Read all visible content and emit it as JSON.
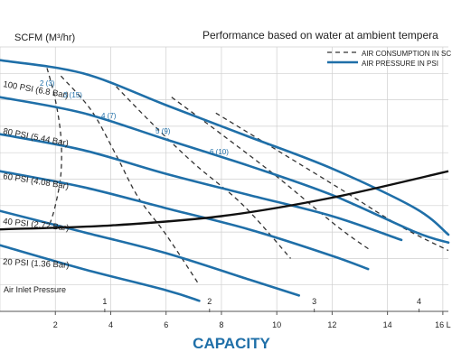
{
  "chart_data": {
    "type": "line",
    "title": "Performance based on water at ambient tempera",
    "ylabel": "SCFM (M³/hr)",
    "xlabel": "CAPACITY",
    "x_ticks_bottom": [
      "2",
      "4",
      "6",
      "8",
      "10",
      "12",
      "14",
      "16 L"
    ],
    "x_ticks_top": [
      "1",
      "2",
      "3",
      "4"
    ],
    "legend": {
      "placement": "top-right",
      "entries": [
        {
          "label": "AIR CONSUMPTION IN SC",
          "style": "dashed",
          "color": "#333333"
        },
        {
          "label": "AIR PRESSURE IN PSI",
          "style": "solid",
          "color": "#1f6fa8"
        }
      ]
    },
    "colors": {
      "pressure": "#1f6fa8",
      "consumption": "#333333",
      "inlet": "#111111",
      "grid": "#cfcfcf"
    },
    "inlet_label": "Air Inlet Pressure",
    "pressure_curves": [
      {
        "label": "100 PSI (6.8 Bar)",
        "points": [
          [
            0,
            95
          ],
          [
            3,
            90
          ],
          [
            6,
            78
          ],
          [
            9,
            66
          ],
          [
            12,
            54
          ],
          [
            15,
            39
          ],
          [
            16.2,
            29
          ]
        ]
      },
      {
        "label": "80 PSI (5.44 Bar)",
        "points": [
          [
            0,
            81
          ],
          [
            3,
            75
          ],
          [
            6,
            65
          ],
          [
            9,
            55
          ],
          [
            12,
            44
          ],
          [
            15,
            30
          ],
          [
            16.2,
            26
          ]
        ]
      },
      {
        "label": "60 PSI (4.08 Bar)",
        "points": [
          [
            0,
            67
          ],
          [
            3,
            61
          ],
          [
            6,
            52
          ],
          [
            9,
            44
          ],
          [
            12,
            36
          ],
          [
            14.5,
            27
          ]
        ]
      },
      {
        "label": "40 PSI (2.72 Bar)",
        "points": [
          [
            0,
            53
          ],
          [
            3,
            47
          ],
          [
            6,
            39
          ],
          [
            9,
            31
          ],
          [
            12,
            21
          ],
          [
            13.3,
            16
          ]
        ]
      },
      {
        "label": "20 PSI (1.36 Bar)",
        "points": [
          [
            0,
            38
          ],
          [
            3,
            30
          ],
          [
            6,
            22
          ],
          [
            9,
            12
          ],
          [
            10.8,
            6
          ]
        ]
      },
      {
        "label": "",
        "points": [
          [
            0,
            25
          ],
          [
            3,
            16
          ],
          [
            6,
            8
          ],
          [
            7.2,
            4
          ]
        ]
      }
    ],
    "consumption_labels": [
      "2 (3)",
      "3 (15)",
      "4 (7)",
      "5 (9)",
      "6 (10)"
    ],
    "consumption_curves": [
      {
        "label": "2 (3)",
        "points": [
          [
            1.7,
            92
          ],
          [
            2.0,
            80
          ],
          [
            2.2,
            66
          ],
          [
            2.2,
            52
          ],
          [
            2.0,
            40
          ],
          [
            1.8,
            33
          ]
        ]
      },
      {
        "label": "3 (15)",
        "points": [
          [
            2.2,
            89
          ],
          [
            3.3,
            76
          ],
          [
            4.2,
            59
          ],
          [
            5.0,
            43
          ],
          [
            6.0,
            29
          ],
          [
            7.2,
            10
          ]
        ]
      },
      {
        "label": "4 (7)",
        "points": [
          [
            4.2,
            85
          ],
          [
            5.5,
            71
          ],
          [
            7.0,
            56
          ],
          [
            8.8,
            40
          ],
          [
            10.5,
            20
          ]
        ]
      },
      {
        "label": "5 (9)",
        "points": [
          [
            6.2,
            81
          ],
          [
            8.0,
            67
          ],
          [
            10.0,
            51
          ],
          [
            12.2,
            32
          ],
          [
            13.4,
            23
          ]
        ]
      },
      {
        "label": "6 (10)",
        "points": [
          [
            7.8,
            75
          ],
          [
            10.0,
            61
          ],
          [
            12.5,
            45
          ],
          [
            14.5,
            32
          ],
          [
            16.2,
            23
          ]
        ]
      }
    ],
    "inlet_curve": [
      [
        0,
        31
      ],
      [
        4,
        32.5
      ],
      [
        8,
        36
      ],
      [
        12,
        43
      ],
      [
        16.2,
        53
      ]
    ],
    "ylim": [
      0,
      100
    ],
    "xlim": [
      0,
      16.2
    ]
  }
}
